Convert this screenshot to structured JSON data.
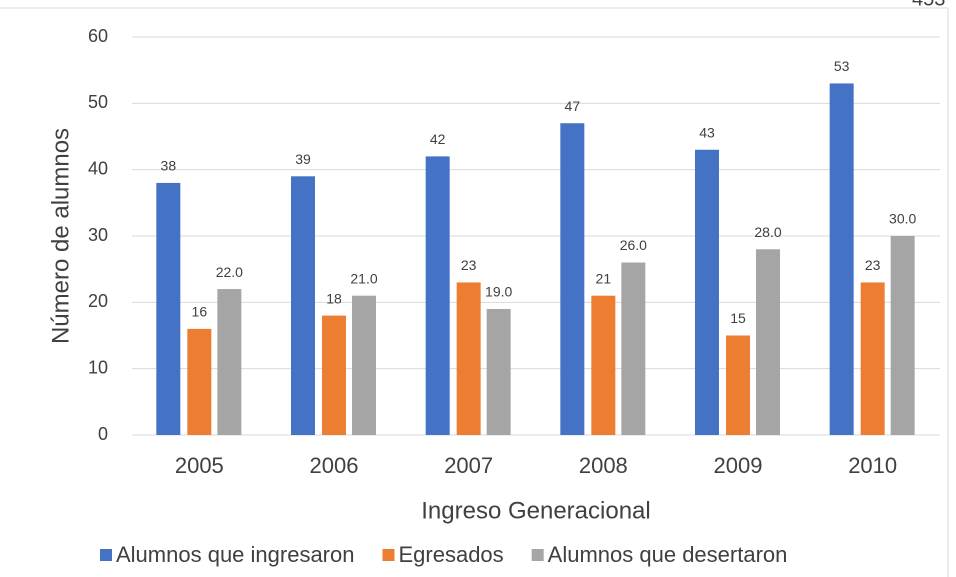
{
  "chart_data": {
    "type": "bar",
    "annotation": "453",
    "x_label": "Ingreso Generacional",
    "y_label": "Número de alumnos",
    "categories": [
      "2005",
      "2006",
      "2007",
      "2008",
      "2009",
      "2010"
    ],
    "series": [
      {
        "name": "Alumnos que ingresaron",
        "color": "#4472c4",
        "values": [
          38,
          39,
          42,
          47,
          43,
          53
        ]
      },
      {
        "name": "Egresados",
        "color": "#ed7d31",
        "values": [
          16,
          18,
          23,
          21,
          15,
          23
        ]
      },
      {
        "name": "Alumnos que desertaron",
        "color": "#a5a5a5",
        "values": [
          22,
          21,
          19,
          26,
          28,
          30
        ],
        "value_labels": [
          "22.0",
          "21.0",
          "19.0",
          "26.0",
          "28.0",
          "30.0"
        ]
      }
    ],
    "ylim": [
      0,
      60
    ],
    "yticks": [
      0,
      10,
      20,
      30,
      40,
      50,
      60
    ],
    "grid": true,
    "legend": "bottom"
  }
}
